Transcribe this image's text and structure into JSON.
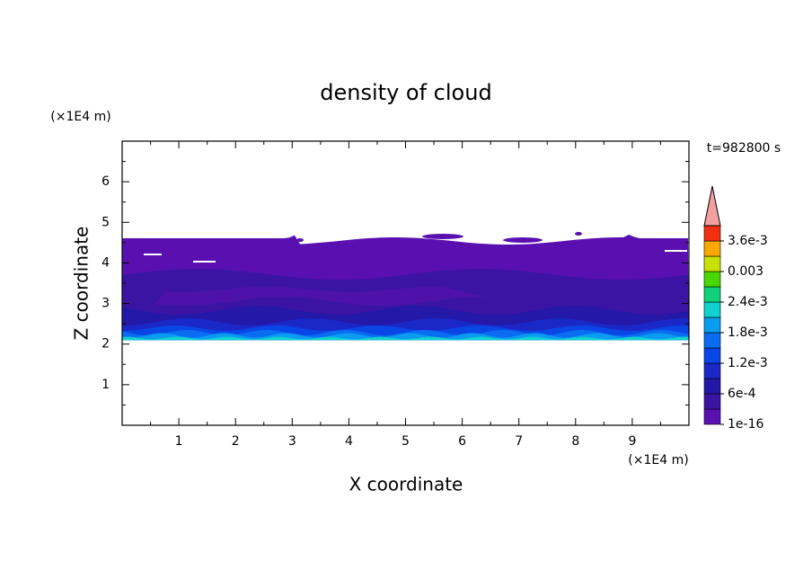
{
  "chart_data": {
    "type": "contour",
    "title": "density of cloud",
    "xlabel": "X coordinate",
    "ylabel": "Z coordinate",
    "x_unit": "(×1E4 m)",
    "y_unit": "(×1E4 m)",
    "time_label": "t=982800 s",
    "xlim": [
      0,
      10
    ],
    "xticks": [
      1,
      2,
      3,
      4,
      5,
      6,
      7,
      8,
      9
    ],
    "ylim": [
      0,
      7
    ],
    "yticks": [
      1,
      2,
      3,
      4,
      5,
      6
    ],
    "colorbar": {
      "clim": [
        1e-16,
        0.0039
      ],
      "ticks": [
        {
          "value": 1e-16,
          "label": "1e-16"
        },
        {
          "value": 0.0006,
          "label": "6e-4"
        },
        {
          "value": 0.0012,
          "label": "1.2e-3"
        },
        {
          "value": 0.0018,
          "label": "1.8e-3"
        },
        {
          "value": 0.0024,
          "label": "2.4e-3"
        },
        0.003,
        {
          "value": 0.0036,
          "label": "3.6e-3"
        }
      ],
      "colors": [
        "#5a10b0",
        "#3c14a4",
        "#2418a8",
        "#1a28c8",
        "#0a46e6",
        "#0a6cf0",
        "#0a9cf0",
        "#10d0d0",
        "#10d07a",
        "#48d800",
        "#c8e000",
        "#f8a800",
        "#f03010"
      ],
      "extend_color": "#f4a0a0"
    }
  }
}
